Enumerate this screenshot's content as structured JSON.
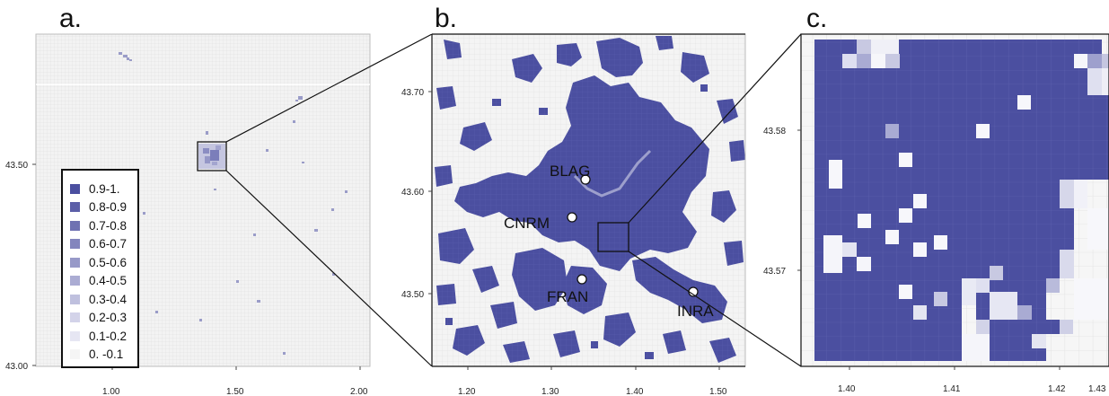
{
  "panels": {
    "a": {
      "letter": "a.",
      "x_ticks": [
        "1.00",
        "1.50",
        "2.00"
      ],
      "y_ticks": [
        "43.50",
        "43.00"
      ]
    },
    "b": {
      "letter": "b.",
      "x_ticks": [
        "1.20",
        "1.30",
        "1.40",
        "1.50"
      ],
      "y_ticks": [
        "43.70",
        "43.60",
        "43.50"
      ],
      "stations": [
        {
          "id": "BLAG",
          "label": "BLAG"
        },
        {
          "id": "CNRM",
          "label": "CNRM"
        },
        {
          "id": "FRAN",
          "label": "FRAN"
        },
        {
          "id": "INRA",
          "label": "INRA"
        }
      ]
    },
    "c": {
      "letter": "c.",
      "x_ticks": [
        "1.40",
        "1.41",
        "1.42",
        "1.43"
      ],
      "y_ticks": [
        "43.58",
        "43.57"
      ]
    }
  },
  "legend": {
    "items": [
      {
        "label": "0.9-1.",
        "color": "#4b4fa0"
      },
      {
        "label": "0.8-0.9",
        "color": "#5c5fa8"
      },
      {
        "label": "0.7-0.8",
        "color": "#6f72b2"
      },
      {
        "label": "0.6-0.7",
        "color": "#8385bd"
      },
      {
        "label": "0.5-0.6",
        "color": "#9799c8"
      },
      {
        "label": "0.4-0.5",
        "color": "#abacd3"
      },
      {
        "label": "0.3-0.4",
        "color": "#bfc0de"
      },
      {
        "label": "0.2-0.3",
        "color": "#d3d3e9"
      },
      {
        "label": "0.1-0.2",
        "color": "#e6e6f3"
      },
      {
        "label": "0. -0.1",
        "color": "#f5f5f5"
      }
    ]
  },
  "colors": {
    "urban": "#4b4fa0",
    "background": "#f3f3f3",
    "grid": "#d6d6d6"
  }
}
